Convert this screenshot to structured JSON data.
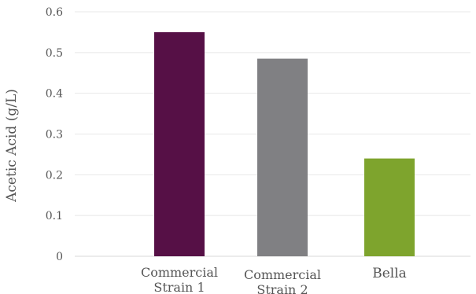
{
  "chart_data": {
    "type": "bar",
    "title": "",
    "ylabel": "Acetic Acid (g/L)",
    "xlabel": "",
    "ylim": [
      0,
      0.6
    ],
    "yticks": [
      "0",
      "0.1",
      "0.2",
      "0.3",
      "0.4",
      "0.5",
      "0.6"
    ],
    "ytick_values": [
      0,
      0.1,
      0.2,
      0.3,
      0.4,
      0.5,
      0.6
    ],
    "grid": true,
    "categories": [
      {
        "line1": "Commercial",
        "line2": "Strain 1"
      },
      {
        "line1": "Commercial",
        "line2": "Strain 2"
      },
      {
        "line1": "Bella",
        "line2": ""
      }
    ],
    "values": [
      0.55,
      0.485,
      0.24
    ],
    "colors": [
      "#561046",
      "#808083",
      "#7ea42d"
    ]
  }
}
